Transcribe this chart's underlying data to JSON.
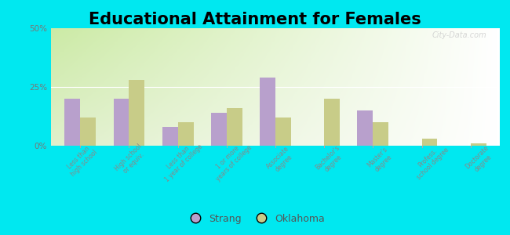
{
  "title": "Educational Attainment for Females",
  "categories": [
    "Less than\nhigh school",
    "High school\nor equiv.",
    "Less than\n1 year of college",
    "1 or more\nyears of college",
    "Associate\ndegree",
    "Bachelor's\ndegree",
    "Master's\ndegree",
    "Profess.\nschool degree",
    "Doctorate\ndegree"
  ],
  "strang_values": [
    20,
    20,
    8,
    14,
    29,
    0,
    15,
    0,
    0
  ],
  "oklahoma_values": [
    12,
    28,
    10,
    16,
    12,
    20,
    10,
    3,
    1
  ],
  "strang_color": "#b8a0cc",
  "oklahoma_color": "#c8cc88",
  "background_outer": "#00e8f0",
  "ylim": [
    0,
    50
  ],
  "yticks": [
    0,
    25,
    50
  ],
  "ytick_labels": [
    "0%",
    "25%",
    "50%"
  ],
  "legend_strang": "Strang",
  "legend_oklahoma": "Oklahoma",
  "title_fontsize": 15,
  "bar_width": 0.32
}
